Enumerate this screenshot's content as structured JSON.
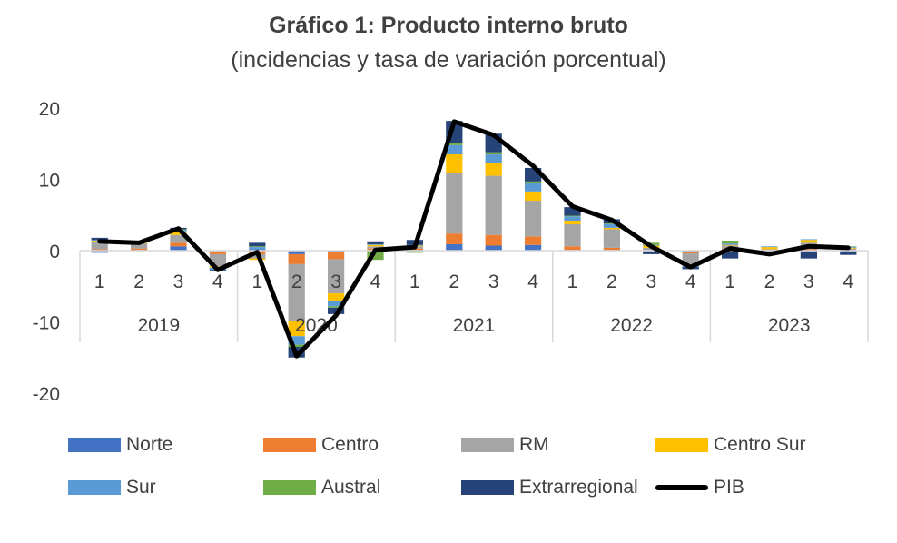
{
  "title": "Gráfico 1: Producto interno bruto",
  "subtitle": "(incidencias y tasa de variación porcentual)",
  "chart_data": {
    "type": "bar",
    "stacked": true,
    "title": "Gráfico 1: Producto interno bruto",
    "subtitle": "(incidencias y tasa de variación porcentual)",
    "xlabel": "",
    "ylabel": "",
    "ylim": [
      -20,
      20
    ],
    "yticks": [
      20,
      10,
      0,
      -10,
      -20
    ],
    "grid": false,
    "legend_position": "bottom",
    "years": [
      "2019",
      "2020",
      "2021",
      "2022",
      "2023"
    ],
    "categories": [
      "1",
      "2",
      "3",
      "4",
      "1",
      "2",
      "3",
      "4",
      "1",
      "2",
      "3",
      "4",
      "1",
      "2",
      "3",
      "4",
      "1",
      "2",
      "3",
      "4"
    ],
    "series": [
      {
        "name": "Norte",
        "color": "#4472C4",
        "values": [
          -0.3,
          0.1,
          0.6,
          -0.1,
          0.2,
          -0.5,
          -0.2,
          0.1,
          0.1,
          0.9,
          0.7,
          0.8,
          0.1,
          0.1,
          -0.1,
          -0.2,
          0.1,
          -0.1,
          -0.1,
          -0.2
        ]
      },
      {
        "name": "Centro",
        "color": "#ED7D31",
        "values": [
          0.2,
          0.2,
          0.5,
          -0.4,
          -0.5,
          -1.4,
          -1.0,
          0.2,
          0.2,
          1.5,
          1.5,
          1.2,
          0.5,
          0.3,
          0.1,
          -0.2,
          0.1,
          0.1,
          0.2,
          0.1
        ]
      },
      {
        "name": "RM",
        "color": "#A5A5A5",
        "values": [
          1.1,
          0.7,
          1.1,
          -1.7,
          -0.6,
          -8.0,
          -4.8,
          0.3,
          0.3,
          8.5,
          8.3,
          5.0,
          3.1,
          2.6,
          0.3,
          -1.5,
          0.5,
          0.1,
          0.9,
          0.2
        ]
      },
      {
        "name": "Centro Sur",
        "color": "#FFC000",
        "values": [
          0.1,
          0.1,
          0.5,
          -0.2,
          -0.2,
          -2.1,
          -1.0,
          0.2,
          0.1,
          2.6,
          1.8,
          1.3,
          0.5,
          0.2,
          0.3,
          -0.2,
          0.1,
          0.3,
          0.4,
          0.1
        ]
      },
      {
        "name": "Sur",
        "color": "#5B9BD5",
        "values": [
          0.1,
          0.1,
          0.2,
          -0.3,
          0.3,
          -1.2,
          -0.8,
          0.1,
          0.1,
          1.3,
          1.2,
          1.2,
          0.6,
          0.5,
          0.1,
          -0.2,
          0.2,
          0.1,
          0.1,
          0.1
        ]
      },
      {
        "name": "Austral",
        "color": "#70AD47",
        "values": [
          0.0,
          0.1,
          0.1,
          0.0,
          0.1,
          -0.3,
          -0.2,
          -1.3,
          -0.3,
          0.3,
          0.3,
          0.2,
          0.1,
          0.1,
          0.3,
          0.0,
          0.4,
          0.0,
          0.0,
          0.1
        ]
      },
      {
        "name": "Extrarregional",
        "color": "#264478",
        "values": [
          0.3,
          0.1,
          0.2,
          -0.2,
          0.5,
          -1.5,
          -0.9,
          0.4,
          0.7,
          3.1,
          2.6,
          1.9,
          1.2,
          0.6,
          -0.4,
          -0.3,
          -1.1,
          -0.5,
          -1.0,
          -0.4
        ]
      }
    ],
    "line": {
      "name": "PIB",
      "color": "#000000",
      "values": [
        1.3,
        1.1,
        3.1,
        -2.7,
        -0.2,
        -14.8,
        -9.1,
        0.1,
        0.5,
        18.1,
        16.2,
        11.9,
        6.2,
        4.3,
        0.6,
        -2.3,
        0.3,
        -0.5,
        0.6,
        0.4
      ]
    }
  },
  "legend": {
    "items": [
      {
        "label": "Norte",
        "color": "#4472C4",
        "kind": "box"
      },
      {
        "label": "Centro",
        "color": "#ED7D31",
        "kind": "box"
      },
      {
        "label": "RM",
        "color": "#A5A5A5",
        "kind": "box"
      },
      {
        "label": "Centro Sur",
        "color": "#FFC000",
        "kind": "box"
      },
      {
        "label": "Sur",
        "color": "#5B9BD5",
        "kind": "box"
      },
      {
        "label": "Austral",
        "color": "#70AD47",
        "kind": "box"
      },
      {
        "label": "Extrarregional",
        "color": "#264478",
        "kind": "box"
      },
      {
        "label": "PIB",
        "color": "#000000",
        "kind": "line"
      }
    ]
  }
}
